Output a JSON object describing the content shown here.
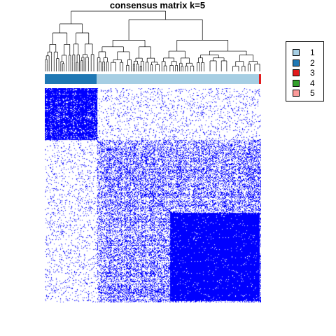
{
  "chart_data": {
    "type": "heatmap",
    "title": "consensus matrix k=5",
    "value_color_low": "#ffffff",
    "value_color_high": "#0000ff",
    "classes": [
      "2",
      "1",
      "3"
    ],
    "class_fractions": [
      0.24,
      0.75,
      0.01
    ],
    "block_consensus": [
      [
        0.95,
        0.08,
        0.1
      ],
      [
        0.08,
        0.55,
        0.4
      ],
      [
        0.1,
        0.4,
        0.9
      ]
    ],
    "high_consensus_subregion_of_class_1": {
      "start_fraction": 0.45,
      "end_fraction": 1.0,
      "consensus": 0.97
    },
    "legend": {
      "position": "right",
      "entries": [
        {
          "label": "1",
          "color": "#a6cee3"
        },
        {
          "label": "2",
          "color": "#1f78b4"
        },
        {
          "label": "3",
          "color": "#e31a1c"
        },
        {
          "label": "4",
          "color": "#33a02c"
        },
        {
          "label": "5",
          "color": "#fb9a99"
        }
      ]
    }
  }
}
